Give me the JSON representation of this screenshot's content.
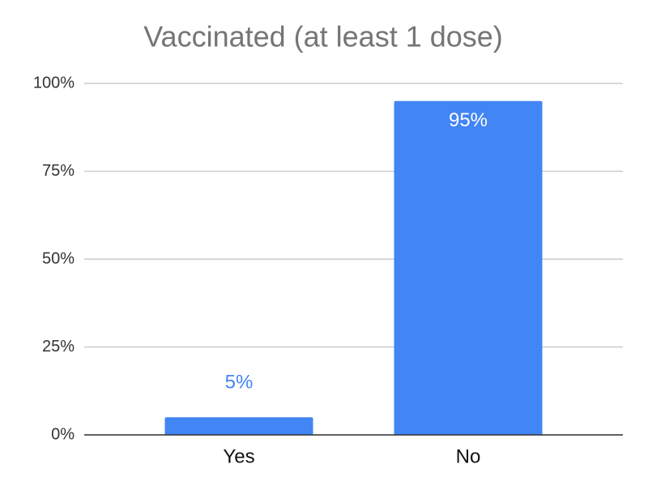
{
  "chart_data": {
    "type": "bar",
    "title": "Vaccinated (at least 1 dose)",
    "categories": [
      "Yes",
      "No"
    ],
    "values": [
      5,
      95
    ],
    "value_labels": [
      "5%",
      "95%"
    ],
    "color": "#4285f4",
    "ylim": [
      0,
      100
    ],
    "yticks": [
      {
        "value": 0,
        "label": "0%"
      },
      {
        "value": 25,
        "label": "25%"
      },
      {
        "value": 50,
        "label": "50%"
      },
      {
        "value": 75,
        "label": "75%"
      },
      {
        "value": 100,
        "label": "100%"
      }
    ],
    "grid": true
  }
}
